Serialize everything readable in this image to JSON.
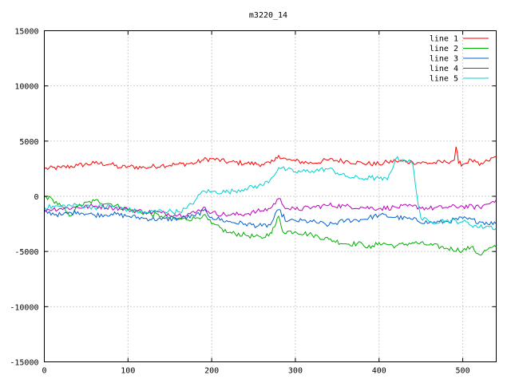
{
  "chart_data": {
    "type": "line",
    "title": "m3220_14",
    "xlabel": "",
    "ylabel": "",
    "xlim": [
      0,
      540
    ],
    "ylim": [
      -15000,
      15000
    ],
    "xticks": [
      0,
      100,
      200,
      300,
      400,
      500
    ],
    "yticks": [
      -15000,
      -10000,
      -5000,
      0,
      5000,
      10000,
      15000
    ],
    "grid": true,
    "legend_position": "top-right",
    "series": [
      {
        "name": "line 1",
        "color": "#ff0000",
        "x": [
          0,
          20,
          40,
          60,
          80,
          90,
          100,
          120,
          140,
          160,
          180,
          190,
          200,
          220,
          240,
          260,
          270,
          275,
          280,
          290,
          300,
          320,
          340,
          360,
          380,
          400,
          410,
          420,
          440,
          460,
          480,
          490,
          492,
          495,
          500,
          510,
          520,
          530,
          540
        ],
        "y": [
          2500,
          2600,
          2800,
          3000,
          2900,
          2600,
          2700,
          2600,
          2800,
          2900,
          3000,
          3300,
          3400,
          3100,
          3000,
          2900,
          3000,
          3200,
          3700,
          3300,
          3200,
          3000,
          3300,
          3200,
          3000,
          2900,
          3100,
          3200,
          3100,
          3000,
          3100,
          3300,
          4500,
          3000,
          2900,
          3300,
          2800,
          3200,
          3600
        ]
      },
      {
        "name": "line 2",
        "color": "#00b000",
        "x": [
          0,
          10,
          20,
          30,
          40,
          60,
          80,
          100,
          120,
          140,
          160,
          180,
          190,
          200,
          220,
          240,
          260,
          270,
          275,
          280,
          285,
          300,
          320,
          340,
          360,
          380,
          390,
          400,
          420,
          440,
          460,
          480,
          500,
          510,
          520,
          530,
          540
        ],
        "y": [
          0,
          -300,
          -900,
          -1800,
          -900,
          -400,
          -700,
          -1200,
          -1500,
          -1800,
          -2100,
          -2000,
          -1700,
          -2500,
          -3300,
          -3500,
          -3800,
          -3300,
          -2800,
          -1800,
          -3200,
          -3200,
          -3500,
          -3900,
          -4300,
          -4300,
          -4700,
          -4200,
          -4500,
          -4200,
          -4400,
          -4700,
          -4900,
          -4600,
          -5300,
          -4800,
          -4600
        ]
      },
      {
        "name": "line 3",
        "color": "#0060d0",
        "x": [
          0,
          20,
          40,
          60,
          80,
          100,
          120,
          140,
          160,
          180,
          190,
          200,
          220,
          240,
          260,
          270,
          280,
          290,
          300,
          320,
          340,
          360,
          380,
          400,
          420,
          440,
          460,
          480,
          500,
          520,
          540
        ],
        "y": [
          -1400,
          -1700,
          -1400,
          -1700,
          -1600,
          -1800,
          -2000,
          -2100,
          -2000,
          -1800,
          -1300,
          -1900,
          -2300,
          -2500,
          -2700,
          -2600,
          -1200,
          -2300,
          -2200,
          -2300,
          -2600,
          -2200,
          -2100,
          -1700,
          -1900,
          -2100,
          -2400,
          -2300,
          -2000,
          -2300,
          -2500
        ]
      },
      {
        "name": "line 4",
        "color": "#c000c0",
        "x": [
          0,
          20,
          40,
          60,
          80,
          100,
          120,
          140,
          160,
          180,
          190,
          200,
          220,
          240,
          260,
          270,
          280,
          290,
          300,
          320,
          340,
          360,
          380,
          400,
          420,
          440,
          460,
          480,
          500,
          520,
          530,
          540
        ],
        "y": [
          -1200,
          -1100,
          -1000,
          -900,
          -1000,
          -1200,
          -1400,
          -1500,
          -1700,
          -1500,
          -1000,
          -1500,
          -1700,
          -1600,
          -1300,
          -1100,
          -200,
          -1100,
          -1200,
          -1000,
          -800,
          -900,
          -1000,
          -1100,
          -1000,
          -900,
          -1100,
          -1000,
          -900,
          -1000,
          -700,
          -300
        ]
      },
      {
        "name": "line 5",
        "color": "#00d0d0",
        "x": [
          0,
          20,
          40,
          60,
          80,
          100,
          120,
          140,
          160,
          170,
          180,
          190,
          200,
          220,
          240,
          260,
          270,
          280,
          290,
          300,
          320,
          340,
          360,
          380,
          390,
          400,
          410,
          420,
          430,
          440,
          445,
          450,
          460,
          480,
          500,
          520,
          530,
          540
        ],
        "y": [
          -1000,
          -900,
          -800,
          -1000,
          -900,
          -1200,
          -1500,
          -1300,
          -1400,
          -1100,
          -400,
          500,
          400,
          400,
          700,
          1000,
          1500,
          2600,
          2400,
          2200,
          2300,
          2500,
          1800,
          1600,
          1700,
          1600,
          1500,
          3400,
          3300,
          3000,
          200,
          -2000,
          -2300,
          -2200,
          -2300,
          -2800,
          -2700,
          -2900
        ]
      }
    ]
  }
}
